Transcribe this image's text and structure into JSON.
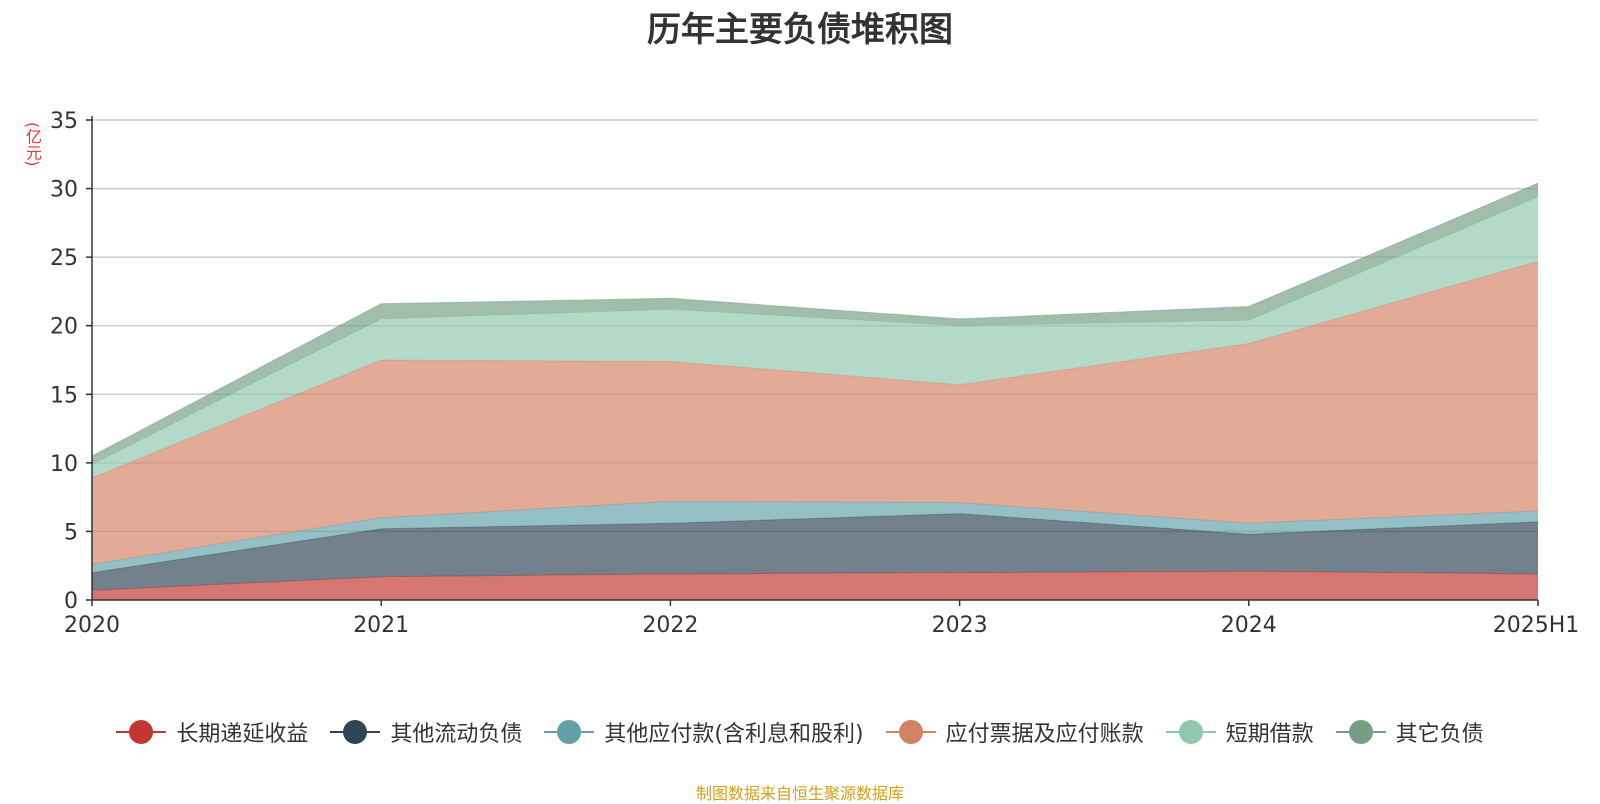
{
  "title": "历年主要负债堆积图",
  "y_unit": "(亿元)",
  "source_note": "制图数据来自恒生聚源数据库",
  "chart_data": {
    "type": "area",
    "stacked": true,
    "title": "历年主要负债堆积图",
    "ylabel": "(亿元)",
    "xlabel": "",
    "categories": [
      "2020",
      "2021",
      "2022",
      "2023",
      "2024",
      "2025H1"
    ],
    "ylim": [
      0,
      35
    ],
    "yticks": [
      0,
      5,
      10,
      15,
      20,
      25,
      30,
      35
    ],
    "grid": true,
    "legend_position": "bottom",
    "series": [
      {
        "name": "长期递延收益",
        "color": "#c23531",
        "values": [
          0.7,
          1.7,
          1.9,
          2.0,
          2.1,
          1.9
        ]
      },
      {
        "name": "其他流动负债",
        "color": "#2f4554",
        "values": [
          1.3,
          3.5,
          3.7,
          4.3,
          2.7,
          3.8
        ]
      },
      {
        "name": "其他应付款(含利息和股利)",
        "color": "#61a0a8",
        "values": [
          0.6,
          0.8,
          1.6,
          0.8,
          0.8,
          0.8
        ]
      },
      {
        "name": "应付票据及应付账款",
        "color": "#d48265",
        "values": [
          6.3,
          11.5,
          10.2,
          8.6,
          13.1,
          18.2
        ]
      },
      {
        "name": "短期借款",
        "color": "#91c7ae",
        "values": [
          1.0,
          3.0,
          3.8,
          4.3,
          1.7,
          4.7
        ]
      },
      {
        "name": "其它负债",
        "color": "#749f83",
        "values": [
          0.6,
          1.1,
          0.8,
          0.5,
          1.0,
          1.0
        ]
      }
    ]
  }
}
